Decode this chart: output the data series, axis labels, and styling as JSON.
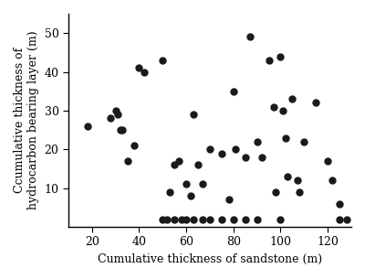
{
  "x": [
    18,
    28,
    30,
    31,
    32,
    33,
    35,
    38,
    40,
    42,
    50,
    53,
    55,
    57,
    60,
    62,
    63,
    65,
    67,
    70,
    75,
    78,
    80,
    81,
    85,
    87,
    90,
    92,
    95,
    97,
    98,
    100,
    101,
    102,
    103,
    105,
    107,
    108,
    110,
    115,
    120,
    122,
    125,
    128,
    50,
    52,
    55,
    58,
    60,
    63,
    67,
    70,
    75,
    80,
    85,
    90,
    100,
    125
  ],
  "y": [
    26,
    28,
    30,
    29,
    25,
    25,
    17,
    21,
    41,
    40,
    43,
    9,
    16,
    17,
    11,
    8,
    29,
    16,
    11,
    20,
    19,
    7,
    35,
    20,
    18,
    49,
    22,
    18,
    43,
    31,
    9,
    44,
    30,
    23,
    13,
    33,
    12,
    9,
    22,
    32,
    17,
    12,
    6,
    2,
    2,
    2,
    2,
    2,
    2,
    2,
    2,
    2,
    2,
    2,
    2,
    2,
    2,
    2
  ],
  "xlabel": "Cumulative thickness of sandstone (m)",
  "ylabel": "Ccumulative thickness of\nhydrocarbon bearing layer (m)",
  "xlim": [
    10,
    130
  ],
  "ylim": [
    0,
    55
  ],
  "xticks": [
    20,
    40,
    60,
    80,
    100,
    120
  ],
  "yticks": [
    10,
    20,
    30,
    40,
    50
  ],
  "marker_size": 25,
  "marker_color": "#1a1a1a",
  "bg_color": "#ffffff"
}
